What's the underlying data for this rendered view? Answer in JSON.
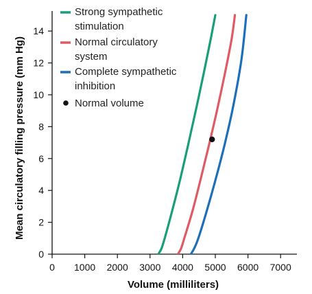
{
  "chart_data": {
    "type": "line",
    "xlabel": "Volume (milliliters)",
    "ylabel": "Mean circulatory filling pressure (mm Hg)",
    "xlim": [
      0,
      7500
    ],
    "ylim": [
      0,
      15
    ],
    "x_ticks": [
      0,
      1000,
      2000,
      3000,
      4000,
      5000,
      6000,
      7000
    ],
    "y_ticks": [
      0,
      2,
      4,
      6,
      8,
      10,
      12,
      14
    ],
    "grid": false,
    "legend_position": "top-left",
    "series": [
      {
        "name_lines": [
          "Strong sympathetic",
          "stimulation"
        ],
        "color": "#1a9e7a",
        "points": [
          [
            3250,
            0
          ],
          [
            3350,
            0.35
          ],
          [
            3450,
            1
          ],
          [
            3650,
            2.5
          ],
          [
            3900,
            4.5
          ],
          [
            4150,
            6.7
          ],
          [
            4400,
            9
          ],
          [
            4650,
            11.4
          ],
          [
            4850,
            13.4
          ],
          [
            5000,
            15
          ]
        ]
      },
      {
        "name_lines": [
          "Normal circulatory",
          "system"
        ],
        "color": "#e05a66",
        "points": [
          [
            3850,
            0
          ],
          [
            3950,
            0.35
          ],
          [
            4050,
            1
          ],
          [
            4300,
            2.7
          ],
          [
            4550,
            4.7
          ],
          [
            4800,
            6.8
          ],
          [
            5050,
            9
          ],
          [
            5300,
            11.4
          ],
          [
            5500,
            13.5
          ],
          [
            5600,
            15
          ]
        ]
      },
      {
        "name_lines": [
          "Complete sympathetic",
          "inhibition"
        ],
        "color": "#1d6fb8",
        "points": [
          [
            4250,
            0
          ],
          [
            4350,
            0.35
          ],
          [
            4480,
            1
          ],
          [
            4750,
            2.8
          ],
          [
            5050,
            5
          ],
          [
            5300,
            7
          ],
          [
            5550,
            9.3
          ],
          [
            5800,
            12.2
          ],
          [
            5950,
            15
          ]
        ]
      }
    ],
    "annotation": {
      "label": "Normal volume",
      "x": 4900,
      "y": 7.2
    }
  }
}
